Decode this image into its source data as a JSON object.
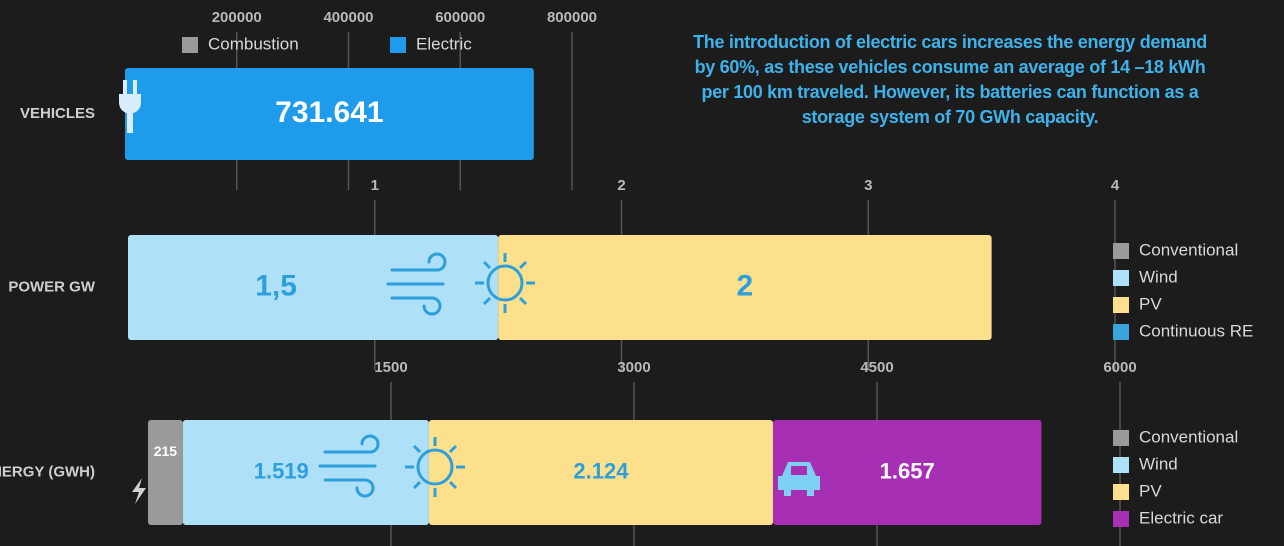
{
  "annotation": "The introduction of electric cars increases the energy demand by 60%, as these vehicles consume an average of 14 –18 kWh per 100 km traveled. However, its batteries can function as a storage system of 70 GWh capacity.",
  "chart_data": [
    {
      "type": "stacked-bar-horizontal",
      "categories": [
        "VEHICLES"
      ],
      "xlim": [
        0,
        800000
      ],
      "xticks": [
        200000,
        400000,
        600000,
        800000
      ],
      "legend": "top",
      "series": [
        {
          "name": "Combustion",
          "color": "#9a9a9a",
          "values": [
            null
          ]
        },
        {
          "name": "Electric",
          "color": "#1f9bec",
          "values": [
            731641
          ],
          "value_labels": [
            "731.641"
          ]
        }
      ]
    },
    {
      "type": "stacked-bar-horizontal",
      "categories": [
        "POWER GW"
      ],
      "xlim": [
        0,
        4
      ],
      "xticks": [
        1,
        2,
        3,
        4
      ],
      "legend": "right",
      "series": [
        {
          "name": "Conventional",
          "color": "#9a9a9a",
          "values": [
            null
          ]
        },
        {
          "name": "Wind",
          "color": "#aee1f7",
          "values": [
            1.5
          ],
          "value_labels": [
            "1,5"
          ]
        },
        {
          "name": "PV",
          "color": "#fde08c",
          "values": [
            2
          ]
        },
        {
          "name": "Continuous RE",
          "color": "#3aa4dc",
          "values": [
            null
          ]
        }
      ]
    },
    {
      "type": "stacked-bar-horizontal",
      "categories": [
        "ENERGY (GWH)"
      ],
      "xlim": [
        0,
        6000
      ],
      "xticks": [
        1500,
        3000,
        4500,
        6000
      ],
      "legend": "right",
      "series": [
        {
          "name": "Conventional",
          "color": "#9a9a9a",
          "values": [
            215
          ]
        },
        {
          "name": "Wind",
          "color": "#aee1f7",
          "values": [
            1519
          ],
          "value_labels": [
            "1.519"
          ]
        },
        {
          "name": "PV",
          "color": "#fde08c",
          "values": [
            2124
          ],
          "value_labels": [
            "2.124"
          ]
        },
        {
          "name": "Electric car",
          "color": "#a62fb3",
          "values": [
            1657
          ],
          "value_labels": [
            "1.657"
          ]
        }
      ]
    }
  ]
}
